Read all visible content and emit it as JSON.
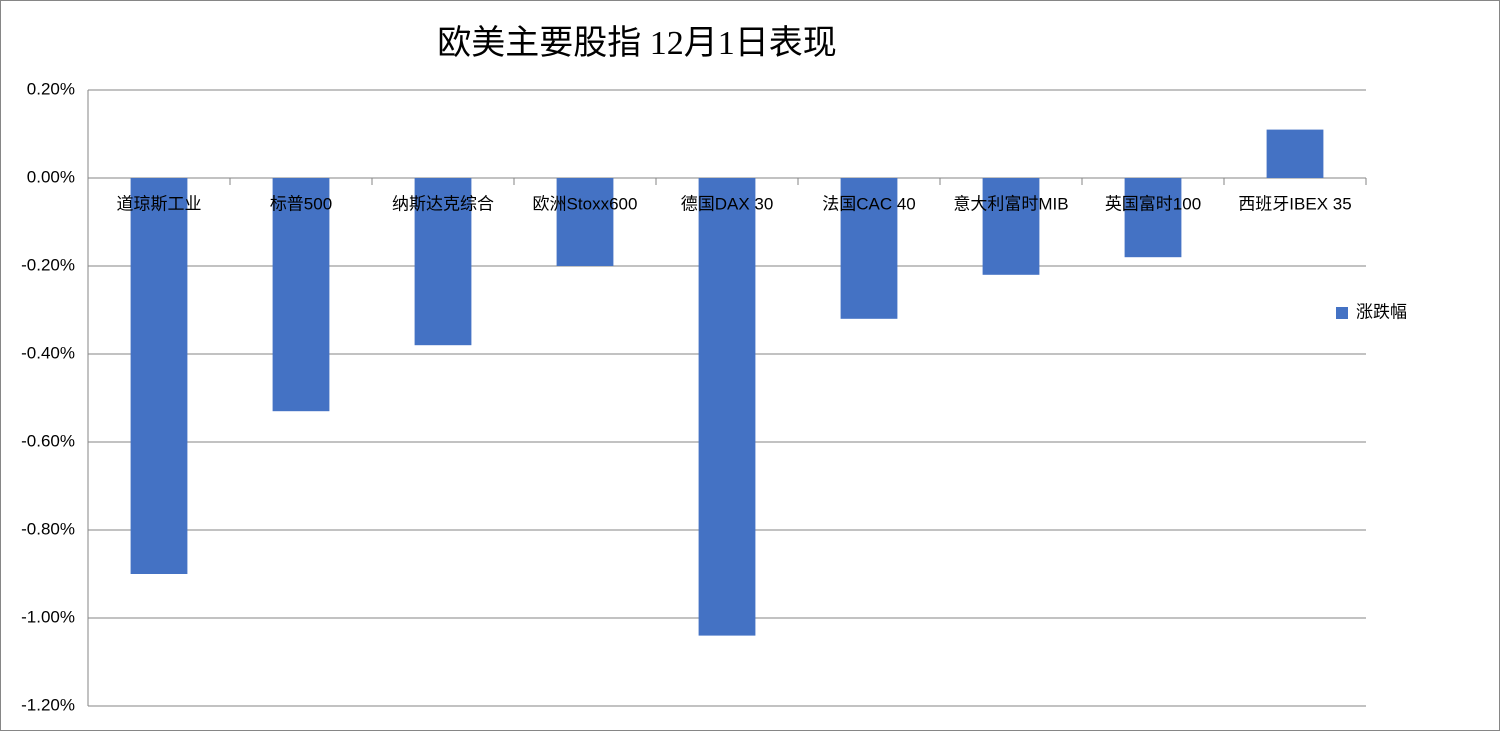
{
  "chart_data": {
    "type": "bar",
    "title": "欧美主要股指    12月1日表现",
    "categories": [
      "道琼斯工业",
      "标普500",
      "纳斯达克综合",
      "欧洲Stoxx600",
      "德国DAX 30",
      "法国CAC 40",
      "意大利富时MIB",
      "英国富时100",
      "西班牙IBEX 35"
    ],
    "series": [
      {
        "name": "涨跌幅",
        "color": "#4472c4",
        "values": [
          -0.9,
          -0.53,
          -0.38,
          -0.2,
          -1.04,
          -0.32,
          -0.22,
          -0.18,
          0.11
        ]
      }
    ],
    "ylim": [
      -1.2,
      0.2
    ],
    "yticks": [
      {
        "value": -1.2,
        "label": "-1.20%"
      },
      {
        "value": -1.0,
        "label": "-1.00%"
      },
      {
        "value": -0.8,
        "label": "-0.80%"
      },
      {
        "value": -0.6,
        "label": "-0.60%"
      },
      {
        "value": -0.4,
        "label": "-0.40%"
      },
      {
        "value": -0.2,
        "label": "-0.20%"
      },
      {
        "value": 0,
        "label": "0.00%"
      },
      {
        "value": 0.2,
        "label": "0.20%"
      }
    ],
    "grid": true,
    "legend": "right"
  }
}
